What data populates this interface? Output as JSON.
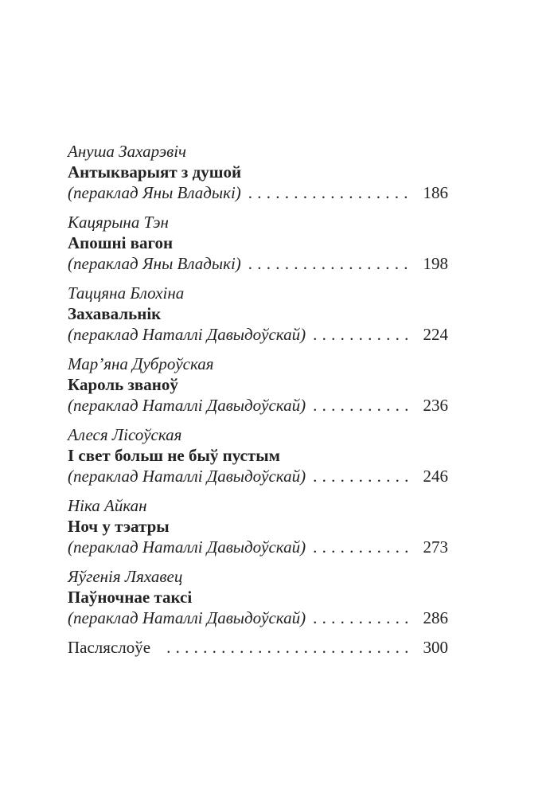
{
  "page": {
    "background": "#ffffff",
    "text_color": "#222222"
  },
  "toc": {
    "leader_char": ".",
    "entries": [
      {
        "author": "Ануша Захарэвіч",
        "title": "Антыкварыят з душой",
        "translation": "(пераклад Яны Владыкі)",
        "page": "186"
      },
      {
        "author": "Кацярына Тэн",
        "title": "Апошні вагон",
        "translation": "(пераклад Яны Владыкі)",
        "page": "198"
      },
      {
        "author": "Таццяна Блохіна",
        "title": "Захавальнік",
        "translation": "(пераклад Наталлі Давыдоўскай)",
        "page": "224"
      },
      {
        "author": "Мар’яна Дуброўская",
        "title": "Кароль званоў",
        "translation": "(пераклад Наталлі Давыдоўскай)",
        "page": "236"
      },
      {
        "author": "Алеся Лісоўская",
        "title": "І свет больш не быў пустым",
        "translation": "(пераклад Наталлі Давыдоўскай)",
        "page": "246"
      },
      {
        "author": "Ніка Айкан",
        "title": "Ноч у тэатры",
        "translation": "(пераклад Наталлі Давыдоўскай)",
        "page": "273"
      },
      {
        "author": "Яўгенія Ляхавец",
        "title": "Паўночнае таксі",
        "translation": "(пераклад Наталлі Давыдоўскай)",
        "page": "286"
      }
    ],
    "afterword": {
      "label": "Пасляслоўе",
      "page": "300"
    }
  }
}
